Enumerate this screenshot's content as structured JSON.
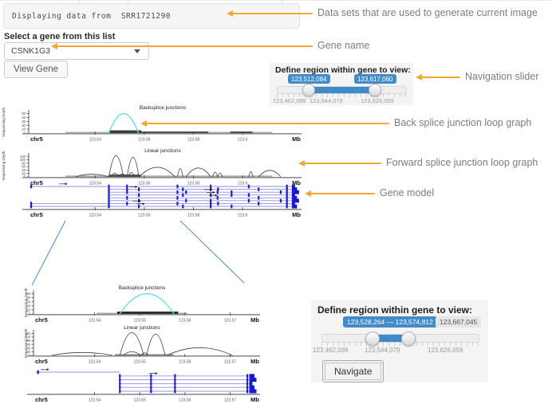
{
  "header": {
    "dataset_text": "Displaying data from  SRR1721290",
    "gene_label": "Select a gene from this list",
    "gene_value": "CSNK1G3",
    "view_gene_button": "View Gene"
  },
  "region_panel_top": {
    "title": "Define region within gene to view:",
    "from_label": "123,512,084",
    "to_label": "123,617,060",
    "scale": [
      "123,462,099",
      "123,544,079",
      "123,626,059"
    ]
  },
  "region_panel_bottom": {
    "title": "Define region within gene to view:",
    "range_label": "123,528,264 — 123,574,812",
    "max_label": "123,667,045",
    "scale": [
      "123,462,099",
      "123,544,079",
      "123,626,059"
    ],
    "navigate_button": "Navigate"
  },
  "annotations": [
    {
      "text": "Data sets that are used to generate current image"
    },
    {
      "text": "Gene name"
    },
    {
      "text": "Navigation slider"
    },
    {
      "text": "Back splice junction loop graph"
    },
    {
      "text": "Forward splice junction loop graph"
    },
    {
      "text": "Gene model"
    }
  ],
  "colors": {
    "accent_blue": "#428bca",
    "arrow_orange": "#f3a72f",
    "backsplice_cyan": "#5fe0e4",
    "junction_black": "#3c3c3c",
    "gene_model_blue": "#1f1fc4",
    "connector_blue": "#4f86c6"
  },
  "chart_data": [
    {
      "id": "upper-backsplice",
      "type": "line",
      "subtype": "junction-loops",
      "title": "Backsplice junctions",
      "ylabel": "Sequencing Depth",
      "chrom": "chr5",
      "unit": "Mb",
      "xlim": [
        123.513,
        123.622
      ],
      "ylim": [
        0,
        55
      ],
      "yticks": [
        0,
        10,
        20,
        30,
        40,
        50
      ],
      "xticks": [
        123.54,
        123.56,
        123.58,
        123.6
      ],
      "arc_color": "#5fe0e4",
      "arc_width": 1.3,
      "arcs": [
        {
          "x1": 123.5456,
          "x2": 123.5576,
          "h": 50
        }
      ],
      "coverage": [
        {
          "x1": 123.528,
          "x2": 123.612,
          "h": 3,
          "c": "#aaaaaa"
        },
        {
          "x1": 123.5456,
          "x2": 123.5588,
          "h": 7,
          "c": "#3a3a3a"
        },
        {
          "x1": 123.5588,
          "x2": 123.586,
          "h": 4,
          "c": "#4a4a4a"
        },
        {
          "x1": 123.595,
          "x2": 123.604,
          "h": 4,
          "c": "#4a4a4a"
        }
      ]
    },
    {
      "id": "upper-linear",
      "type": "line",
      "subtype": "junction-loops",
      "title": "Linear junctions",
      "ylabel": "Sequencing Depth",
      "chrom": "chr5",
      "unit": "Mb",
      "xlim": [
        123.513,
        123.622
      ],
      "ylim": [
        0,
        130
      ],
      "yticks": [
        0,
        20,
        40,
        60,
        80,
        100,
        120
      ],
      "xticks": [
        123.54,
        123.56,
        123.58,
        123.6
      ],
      "arc_color": "#3c3c3c",
      "arc_width": 0.8,
      "arcs": [
        {
          "x1": 123.532,
          "x2": 123.5455,
          "h": 16
        },
        {
          "x1": 123.5456,
          "x2": 123.5515,
          "h": 124
        },
        {
          "x1": 123.5465,
          "x2": 123.5495,
          "h": 22
        },
        {
          "x1": 123.5495,
          "x2": 123.5525,
          "h": 18
        },
        {
          "x1": 123.553,
          "x2": 123.5578,
          "h": 114
        },
        {
          "x1": 123.5535,
          "x2": 123.556,
          "h": 26
        },
        {
          "x1": 123.558,
          "x2": 123.5725,
          "h": 56
        },
        {
          "x1": 123.5735,
          "x2": 123.5757,
          "h": 48
        },
        {
          "x1": 123.577,
          "x2": 123.587,
          "h": 52
        },
        {
          "x1": 123.5878,
          "x2": 123.5898,
          "h": 28
        },
        {
          "x1": 123.5898,
          "x2": 123.5918,
          "h": 22
        },
        {
          "x1": 123.6025,
          "x2": 123.6042,
          "h": 30
        },
        {
          "x1": 123.6065,
          "x2": 123.6155,
          "h": 38
        }
      ],
      "coverage": [
        {
          "x1": 123.528,
          "x2": 123.612,
          "h": 8,
          "c": "#aaaaaa"
        },
        {
          "x1": 123.5456,
          "x2": 123.5585,
          "h": 14,
          "c": "#555555"
        }
      ]
    },
    {
      "id": "upper-gene-model",
      "type": "gene-model",
      "chrom": "chr5",
      "unit": "Mb",
      "xlim": [
        123.513,
        123.622
      ],
      "xticks": [
        123.54,
        123.56,
        123.58,
        123.6
      ],
      "transcripts": [
        {
          "start": 123.5135,
          "end": 123.6205,
          "exons": [
            123.514,
            123.5456,
            123.553,
            123.5735,
            123.587,
            123.6025,
            123.618
          ],
          "arrow": 123.527,
          "end_block": true
        },
        {
          "start": 123.5456,
          "end": 123.6205,
          "exons": [
            123.5456,
            123.553,
            123.5578,
            123.5757,
            123.587,
            123.59,
            123.6065,
            123.618
          ],
          "arrow": 123.5555,
          "end_block": true
        },
        {
          "start": 123.5456,
          "end": 123.6205,
          "exons": [
            123.5456,
            123.553,
            123.5735,
            123.577,
            123.5898,
            123.5955,
            123.6155,
            123.618
          ],
          "arrow": 123.586,
          "end_block": true
        },
        {
          "start": 123.5456,
          "end": 123.6205,
          "exons": [
            123.5456,
            123.5578,
            123.5757,
            123.587,
            123.5955,
            123.6025,
            123.618
          ],
          "arrow": 123.587,
          "end_block": true
        },
        {
          "start": 123.5456,
          "end": 123.6205,
          "exons": [
            123.5456,
            123.553,
            123.5735,
            123.5898,
            123.6065,
            123.618
          ],
          "arrow": 123.588,
          "end_block": true
        },
        {
          "start": 123.5456,
          "end": 123.6205,
          "exons": [
            123.5456,
            123.5578,
            123.577,
            123.587,
            123.6025,
            123.6155,
            123.618
          ],
          "end_block": true
        },
        {
          "start": 123.5135,
          "end": 123.6205,
          "exons": [
            123.514,
            123.5456,
            123.553,
            123.5735,
            123.587,
            123.59,
            123.6065,
            123.618
          ],
          "arrow": 123.557,
          "end_block": true
        },
        {
          "start": 123.5135,
          "end": 123.6205,
          "exons": [
            123.514,
            123.5456,
            123.5578,
            123.5757,
            123.587,
            123.5955,
            123.618
          ],
          "arrow": 123.5585,
          "end_block": true
        }
      ]
    },
    {
      "id": "lower-backsplice",
      "type": "line",
      "subtype": "junction-loops",
      "title": "Backsplice junctions",
      "ylabel": "Sequencing Depth",
      "chrom": "chr5",
      "unit": "Mb",
      "xlim": [
        123.5265,
        123.5745
      ],
      "ylim": [
        0,
        55
      ],
      "yticks": [
        0,
        10,
        20,
        30,
        40,
        50
      ],
      "xticks": [
        123.54,
        123.55,
        123.56,
        123.57
      ],
      "arc_color": "#5fe0e4",
      "arc_width": 1.3,
      "arcs": [
        {
          "x1": 123.5456,
          "x2": 123.5576,
          "h": 50
        }
      ],
      "coverage": [
        {
          "x1": 123.5405,
          "x2": 123.5605,
          "h": 3,
          "c": "#aaaaaa"
        },
        {
          "x1": 123.545,
          "x2": 123.5585,
          "h": 6,
          "c": "#2e2e2e"
        }
      ]
    },
    {
      "id": "lower-linear",
      "type": "line",
      "subtype": "junction-loops",
      "title": "Linear junctions",
      "ylabel": "Sequencing Depth",
      "chrom": "chr5",
      "unit": "Mb",
      "xlim": [
        123.5265,
        123.5745
      ],
      "ylim": [
        0,
        130
      ],
      "yticks": [
        0,
        20,
        40,
        60,
        80,
        100,
        120
      ],
      "xticks": [
        123.54,
        123.55,
        123.56,
        123.57
      ],
      "arc_color": "#3c3c3c",
      "arc_width": 0.8,
      "arcs": [
        {
          "x1": 123.5305,
          "x2": 123.544,
          "h": 16
        },
        {
          "x1": 123.5456,
          "x2": 123.5509,
          "h": 124
        },
        {
          "x1": 123.5463,
          "x2": 123.5502,
          "h": 20
        },
        {
          "x1": 123.5503,
          "x2": 123.5519,
          "h": 14
        },
        {
          "x1": 123.5515,
          "x2": 123.5556,
          "h": 116
        },
        {
          "x1": 123.556,
          "x2": 123.5705,
          "h": 42
        }
      ],
      "coverage": [
        {
          "x1": 123.5445,
          "x2": 123.5575,
          "h": 6,
          "c": "#777777"
        }
      ]
    },
    {
      "id": "lower-gene-model",
      "type": "gene-model",
      "chrom": "chr5",
      "unit": "Mb",
      "xlim": [
        123.5265,
        123.5745
      ],
      "xticks": [
        123.54,
        123.55,
        123.56,
        123.57
      ],
      "transcripts": [
        {
          "start": 123.527,
          "end": 123.5456,
          "exons": [
            123.5275
          ],
          "arrow": 123.529,
          "end_block": false
        },
        {
          "start": 123.5456,
          "end": 123.5745,
          "exons": [
            123.5456,
            123.5525,
            123.5578,
            123.5738
          ],
          "arrow": 123.553,
          "end_block": true
        },
        {
          "start": 123.5456,
          "end": 123.5745,
          "exons": [
            123.5456,
            123.5525,
            123.5578,
            123.5738
          ],
          "end_block": true
        },
        {
          "start": 123.5456,
          "end": 123.5745,
          "exons": [
            123.5456,
            123.5525,
            123.5578,
            123.5738
          ],
          "end_block": true
        },
        {
          "start": 123.5456,
          "end": 123.5745,
          "exons": [
            123.5456,
            123.5525,
            123.5578,
            123.5738
          ],
          "end_block": true
        },
        {
          "start": 123.5456,
          "end": 123.5745,
          "exons": [
            123.5456,
            123.5525,
            123.5578,
            123.5738
          ],
          "end_block": true
        }
      ]
    }
  ]
}
